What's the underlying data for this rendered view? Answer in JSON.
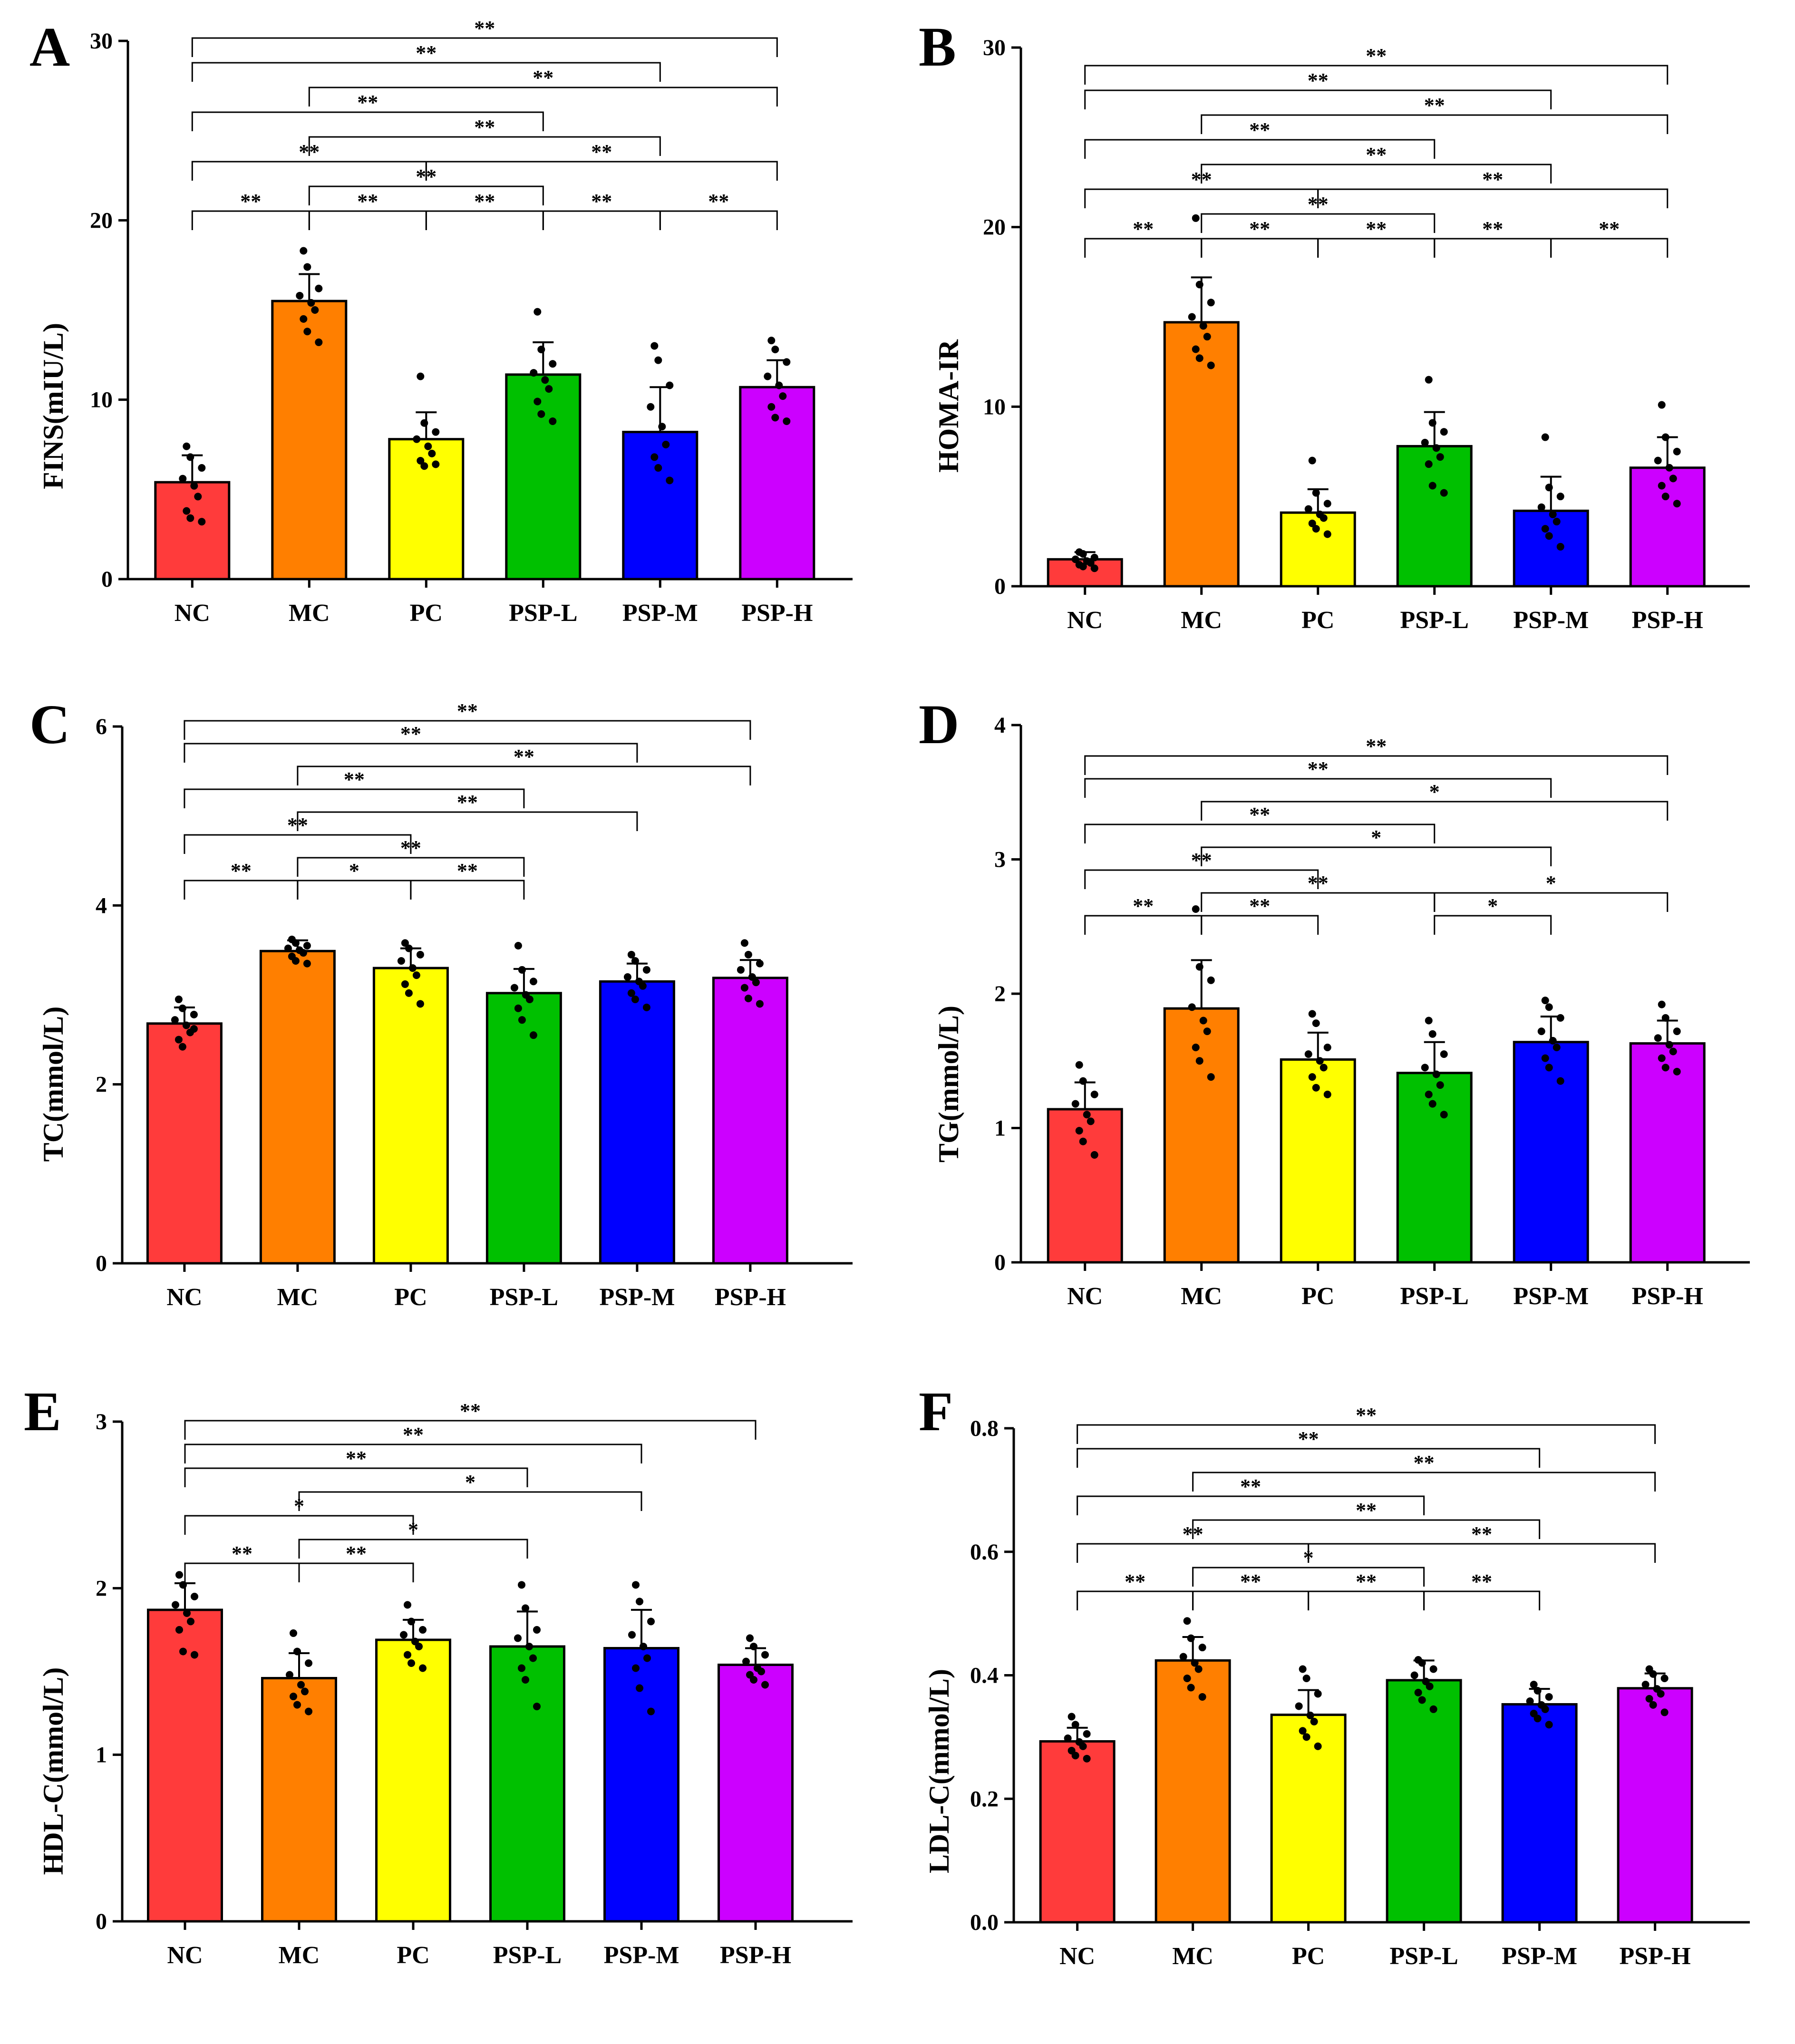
{
  "colors": {
    "axis": "#000000",
    "dot": "#000000",
    "bars": [
      "#FF3B3B",
      "#FF7F00",
      "#FFFF00",
      "#00C000",
      "#0000FF",
      "#CC00FF"
    ]
  },
  "chart_data": [
    {
      "id": "A",
      "type": "bar",
      "panel_label": "A",
      "ylabel": "FINS(mIU/L)",
      "categories": [
        "NC",
        "MC",
        "PC",
        "PSP-L",
        "PSP-M",
        "PSP-H"
      ],
      "values": [
        5.4,
        15.5,
        7.8,
        11.4,
        8.2,
        10.7
      ],
      "sd": [
        1.5,
        1.5,
        1.5,
        1.8,
        2.5,
        1.5
      ],
      "ylim": [
        0,
        30
      ],
      "yticks": [
        0,
        10,
        20,
        30
      ],
      "points": [
        [
          7.4,
          6.8,
          6.2,
          5.6,
          5.2,
          4.6,
          3.8,
          3.4,
          3.2
        ],
        [
          18.3,
          17.4,
          16.2,
          15.8,
          15.4,
          15.0,
          14.5,
          13.8,
          13.2
        ],
        [
          11.3,
          8.7,
          8.2,
          7.8,
          7.4,
          7.0,
          6.6,
          6.3,
          6.4
        ],
        [
          14.9,
          12.8,
          12.0,
          11.5,
          11.1,
          10.6,
          9.9,
          9.2,
          8.8
        ],
        [
          13.0,
          12.2,
          10.8,
          9.6,
          8.5,
          7.5,
          6.8,
          6.2,
          5.5
        ],
        [
          13.3,
          12.8,
          12.1,
          11.3,
          10.8,
          10.2,
          9.6,
          9.0,
          8.8
        ]
      ],
      "sig": [
        {
          "from": 0,
          "to": 1,
          "label": "**"
        },
        {
          "from": 1,
          "to": 2,
          "label": "**"
        },
        {
          "from": 1,
          "to": 3,
          "label": "**"
        },
        {
          "from": 1,
          "to": 4,
          "label": "**"
        },
        {
          "from": 1,
          "to": 5,
          "label": "**"
        },
        {
          "from": 0,
          "to": 2,
          "label": "**"
        },
        {
          "from": 0,
          "to": 3,
          "label": "**"
        },
        {
          "from": 0,
          "to": 4,
          "label": "**"
        },
        {
          "from": 0,
          "to": 5,
          "label": "**"
        },
        {
          "from": 2,
          "to": 3,
          "label": "**"
        },
        {
          "from": 3,
          "to": 4,
          "label": "**"
        },
        {
          "from": 4,
          "to": 5,
          "label": "**"
        },
        {
          "from": 2,
          "to": 5,
          "label": "**"
        }
      ]
    },
    {
      "id": "B",
      "type": "bar",
      "panel_label": "B",
      "ylabel": "HOMA-IR",
      "categories": [
        "NC",
        "MC",
        "PC",
        "PSP-L",
        "PSP-M",
        "PSP-H"
      ],
      "values": [
        1.5,
        14.7,
        4.1,
        7.8,
        4.2,
        6.6
      ],
      "sd": [
        0.4,
        2.5,
        1.3,
        1.9,
        1.9,
        1.7
      ],
      "ylim": [
        0,
        30
      ],
      "yticks": [
        0,
        10,
        20,
        30
      ],
      "points": [
        [
          1.9,
          1.8,
          1.6,
          1.5,
          1.4,
          1.3,
          1.2,
          1.1,
          1.0
        ],
        [
          20.5,
          16.8,
          15.8,
          15.0,
          14.5,
          13.9,
          13.2,
          12.7,
          12.3
        ],
        [
          7.0,
          5.2,
          4.6,
          4.3,
          4.0,
          3.8,
          3.5,
          3.2,
          2.9
        ],
        [
          11.5,
          9.1,
          8.6,
          8.0,
          7.7,
          7.2,
          6.8,
          5.6,
          5.2
        ],
        [
          8.3,
          5.5,
          5.0,
          4.4,
          4.0,
          3.6,
          3.2,
          2.8,
          2.2
        ],
        [
          10.1,
          8.3,
          7.5,
          7.0,
          6.6,
          6.0,
          5.6,
          5.0,
          4.6
        ]
      ],
      "sig": [
        {
          "from": 0,
          "to": 1,
          "label": "**"
        },
        {
          "from": 1,
          "to": 2,
          "label": "**"
        },
        {
          "from": 1,
          "to": 3,
          "label": "**"
        },
        {
          "from": 1,
          "to": 4,
          "label": "**"
        },
        {
          "from": 1,
          "to": 5,
          "label": "**"
        },
        {
          "from": 0,
          "to": 2,
          "label": "**"
        },
        {
          "from": 0,
          "to": 3,
          "label": "**"
        },
        {
          "from": 0,
          "to": 4,
          "label": "**"
        },
        {
          "from": 0,
          "to": 5,
          "label": "**"
        },
        {
          "from": 2,
          "to": 3,
          "label": "**"
        },
        {
          "from": 3,
          "to": 4,
          "label": "**"
        },
        {
          "from": 4,
          "to": 5,
          "label": "**"
        },
        {
          "from": 2,
          "to": 5,
          "label": "**"
        }
      ]
    },
    {
      "id": "C",
      "type": "bar",
      "panel_label": "C",
      "ylabel": "TC(mmol/L)",
      "categories": [
        "NC",
        "MC",
        "PC",
        "PSP-L",
        "PSP-M",
        "PSP-H"
      ],
      "values": [
        2.68,
        3.49,
        3.3,
        3.02,
        3.15,
        3.19
      ],
      "sd": [
        0.18,
        0.12,
        0.22,
        0.27,
        0.2,
        0.2
      ],
      "ylim": [
        0,
        6
      ],
      "yticks": [
        0,
        2,
        4,
        6
      ],
      "points": [
        [
          2.95,
          2.85,
          2.78,
          2.72,
          2.66,
          2.58,
          2.5,
          2.42,
          2.62
        ],
        [
          3.62,
          3.58,
          3.55,
          3.52,
          3.5,
          3.47,
          3.43,
          3.38,
          3.35
        ],
        [
          3.58,
          3.52,
          3.45,
          3.38,
          3.3,
          3.22,
          3.12,
          3.02,
          2.9
        ],
        [
          3.55,
          3.28,
          3.15,
          3.08,
          3.0,
          2.95,
          2.85,
          2.72,
          2.55
        ],
        [
          3.45,
          3.38,
          3.28,
          3.2,
          3.15,
          3.1,
          3.02,
          2.95,
          2.86
        ],
        [
          3.58,
          3.45,
          3.35,
          3.28,
          3.2,
          3.14,
          3.08,
          2.96,
          2.9
        ]
      ],
      "sig": [
        {
          "from": 0,
          "to": 1,
          "label": "**"
        },
        {
          "from": 1,
          "to": 2,
          "label": "*"
        },
        {
          "from": 1,
          "to": 3,
          "label": "**"
        },
        {
          "from": 1,
          "to": 4,
          "label": "**"
        },
        {
          "from": 1,
          "to": 5,
          "label": "**"
        },
        {
          "from": 0,
          "to": 2,
          "label": "**"
        },
        {
          "from": 0,
          "to": 3,
          "label": "**"
        },
        {
          "from": 0,
          "to": 4,
          "label": "**"
        },
        {
          "from": 0,
          "to": 5,
          "label": "**"
        },
        {
          "from": 2,
          "to": 3,
          "label": "**"
        }
      ]
    },
    {
      "id": "D",
      "type": "bar",
      "panel_label": "D",
      "ylabel": "TG(mmol/L)",
      "categories": [
        "NC",
        "MC",
        "PC",
        "PSP-L",
        "PSP-M",
        "PSP-H"
      ],
      "values": [
        1.14,
        1.89,
        1.51,
        1.41,
        1.64,
        1.63
      ],
      "sd": [
        0.2,
        0.36,
        0.2,
        0.23,
        0.19,
        0.17
      ],
      "ylim": [
        0,
        4
      ],
      "yticks": [
        0,
        1,
        2,
        3,
        4
      ],
      "points": [
        [
          1.47,
          1.35,
          1.25,
          1.18,
          1.1,
          1.05,
          0.98,
          0.9,
          0.8
        ],
        [
          2.63,
          2.2,
          2.1,
          1.9,
          1.8,
          1.72,
          1.6,
          1.5,
          1.38
        ],
        [
          1.85,
          1.78,
          1.6,
          1.55,
          1.5,
          1.45,
          1.38,
          1.3,
          1.25
        ],
        [
          1.8,
          1.7,
          1.55,
          1.45,
          1.4,
          1.32,
          1.25,
          1.18,
          1.1
        ],
        [
          1.95,
          1.9,
          1.82,
          1.72,
          1.65,
          1.6,
          1.52,
          1.45,
          1.35
        ],
        [
          1.92,
          1.82,
          1.72,
          1.67,
          1.62,
          1.57,
          1.52,
          1.45,
          1.42
        ]
      ],
      "sig": [
        {
          "from": 0,
          "to": 1,
          "label": "**"
        },
        {
          "from": 1,
          "to": 2,
          "label": "**"
        },
        {
          "from": 1,
          "to": 3,
          "label": "**"
        },
        {
          "from": 1,
          "to": 4,
          "label": "*"
        },
        {
          "from": 1,
          "to": 5,
          "label": "*"
        },
        {
          "from": 0,
          "to": 2,
          "label": "**"
        },
        {
          "from": 0,
          "to": 3,
          "label": "**"
        },
        {
          "from": 0,
          "to": 4,
          "label": "**"
        },
        {
          "from": 0,
          "to": 5,
          "label": "**"
        },
        {
          "from": 3,
          "to": 4,
          "label": "*"
        },
        {
          "from": 3,
          "to": 5,
          "label": "*"
        }
      ]
    },
    {
      "id": "E",
      "type": "bar",
      "panel_label": "E",
      "ylabel": "HDL-C(mmol/L)",
      "categories": [
        "NC",
        "MC",
        "PC",
        "PSP-L",
        "PSP-M",
        "PSP-H"
      ],
      "values": [
        1.87,
        1.46,
        1.69,
        1.65,
        1.64,
        1.54
      ],
      "sd": [
        0.16,
        0.15,
        0.12,
        0.21,
        0.23,
        0.1
      ],
      "ylim": [
        0,
        3
      ],
      "yticks": [
        0,
        1,
        2,
        3
      ],
      "points": [
        [
          2.08,
          2.02,
          1.95,
          1.9,
          1.85,
          1.8,
          1.75,
          1.62,
          1.6
        ],
        [
          1.73,
          1.62,
          1.55,
          1.48,
          1.42,
          1.38,
          1.35,
          1.3,
          1.26
        ],
        [
          1.9,
          1.8,
          1.75,
          1.72,
          1.68,
          1.65,
          1.6,
          1.55,
          1.52
        ],
        [
          2.02,
          1.88,
          1.75,
          1.7,
          1.65,
          1.58,
          1.52,
          1.45,
          1.29
        ],
        [
          2.02,
          1.92,
          1.8,
          1.72,
          1.65,
          1.58,
          1.52,
          1.4,
          1.26
        ],
        [
          1.7,
          1.65,
          1.6,
          1.56,
          1.52,
          1.5,
          1.48,
          1.45,
          1.42
        ]
      ],
      "sig": [
        {
          "from": 0,
          "to": 1,
          "label": "**"
        },
        {
          "from": 1,
          "to": 2,
          "label": "**"
        },
        {
          "from": 1,
          "to": 3,
          "label": "*"
        },
        {
          "from": 1,
          "to": 4,
          "label": "*"
        },
        {
          "from": 0,
          "to": 2,
          "label": "*"
        },
        {
          "from": 0,
          "to": 3,
          "label": "**"
        },
        {
          "from": 0,
          "to": 4,
          "label": "**"
        },
        {
          "from": 0,
          "to": 5,
          "label": "**"
        }
      ]
    },
    {
      "id": "F",
      "type": "bar",
      "panel_label": "F",
      "ylabel": "LDL-C(mmol/L)",
      "categories": [
        "NC",
        "MC",
        "PC",
        "PSP-L",
        "PSP-M",
        "PSP-H"
      ],
      "values": [
        0.293,
        0.424,
        0.336,
        0.392,
        0.353,
        0.379
      ],
      "sd": [
        0.022,
        0.038,
        0.04,
        0.032,
        0.025,
        0.024
      ],
      "ylim": [
        0,
        0.8
      ],
      "yticks": [
        "0.0",
        "0.2",
        "0.4",
        "0.6",
        "0.8"
      ],
      "points": [
        [
          0.333,
          0.32,
          0.305,
          0.298,
          0.292,
          0.285,
          0.278,
          0.27,
          0.265
        ],
        [
          0.488,
          0.46,
          0.445,
          0.43,
          0.42,
          0.41,
          0.395,
          0.38,
          0.365
        ],
        [
          0.41,
          0.395,
          0.37,
          0.35,
          0.335,
          0.325,
          0.31,
          0.3,
          0.285
        ],
        [
          0.425,
          0.42,
          0.41,
          0.4,
          0.39,
          0.382,
          0.372,
          0.36,
          0.345
        ],
        [
          0.385,
          0.375,
          0.365,
          0.358,
          0.352,
          0.345,
          0.338,
          0.33,
          0.32
        ],
        [
          0.41,
          0.402,
          0.395,
          0.385,
          0.378,
          0.37,
          0.362,
          0.352,
          0.34
        ]
      ],
      "sig": [
        {
          "from": 0,
          "to": 1,
          "label": "**"
        },
        {
          "from": 1,
          "to": 2,
          "label": "**"
        },
        {
          "from": 1,
          "to": 3,
          "label": "*"
        },
        {
          "from": 1,
          "to": 4,
          "label": "**"
        },
        {
          "from": 1,
          "to": 5,
          "label": "**"
        },
        {
          "from": 0,
          "to": 2,
          "label": "**"
        },
        {
          "from": 0,
          "to": 3,
          "label": "**"
        },
        {
          "from": 0,
          "to": 4,
          "label": "**"
        },
        {
          "from": 0,
          "to": 5,
          "label": "**"
        },
        {
          "from": 2,
          "to": 3,
          "label": "**"
        },
        {
          "from": 3,
          "to": 4,
          "label": "**"
        },
        {
          "from": 2,
          "to": 5,
          "label": "**"
        }
      ]
    }
  ]
}
